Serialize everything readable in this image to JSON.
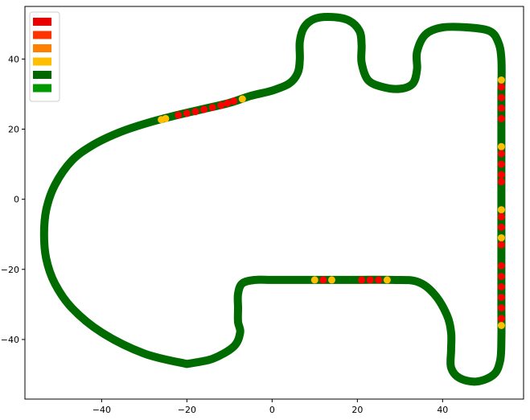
{
  "chart_data": {
    "type": "scatter",
    "title": "",
    "xlabel": "",
    "ylabel": "",
    "xlim": [
      -58,
      59
    ],
    "ylim": [
      -57,
      55
    ],
    "xticks": [
      -40,
      -20,
      0,
      20,
      40
    ],
    "yticks": [
      -40,
      -20,
      0,
      20,
      40
    ],
    "tick_labels_x": [
      "−40",
      "−20",
      "0",
      "20",
      "40"
    ],
    "tick_labels_y": [
      "−40",
      "−20",
      "0",
      "20",
      "40"
    ],
    "grid": false,
    "legend": {
      "placement": "top-left",
      "entries": [
        {
          "label": "",
          "color": "#e60000"
        },
        {
          "label": "",
          "color": "#ff3300"
        },
        {
          "label": "",
          "color": "#ff8000"
        },
        {
          "label": "",
          "color": "#ffbf00"
        },
        {
          "label": "",
          "color": "#006600"
        },
        {
          "label": "",
          "color": "#009900"
        }
      ]
    },
    "track_color": "#006b00",
    "track_path": [
      [
        -20,
        -47
      ],
      [
        -30,
        -44
      ],
      [
        -40,
        -38
      ],
      [
        -47,
        -31
      ],
      [
        -51,
        -24
      ],
      [
        -53,
        -17
      ],
      [
        -53.5,
        -10
      ],
      [
        -53,
        -3
      ],
      [
        -51,
        4
      ],
      [
        -47,
        11
      ],
      [
        -42,
        15.5
      ],
      [
        -36,
        19
      ],
      [
        -30,
        21.5
      ],
      [
        -24,
        23.5
      ],
      [
        -17,
        25.5
      ],
      [
        -10,
        27.5
      ],
      [
        -5,
        29.5
      ],
      [
        0,
        31
      ],
      [
        4,
        33
      ],
      [
        6,
        36
      ],
      [
        6.5,
        40
      ],
      [
        6.5,
        45
      ],
      [
        7.5,
        49
      ],
      [
        10,
        51.5
      ],
      [
        14,
        52
      ],
      [
        18,
        51
      ],
      [
        20.5,
        48
      ],
      [
        21,
        44
      ],
      [
        21,
        39
      ],
      [
        22.5,
        34
      ],
      [
        26,
        32
      ],
      [
        30,
        31.5
      ],
      [
        33,
        33
      ],
      [
        34,
        37
      ],
      [
        34,
        42
      ],
      [
        36,
        47
      ],
      [
        40,
        49
      ],
      [
        46,
        49
      ],
      [
        51,
        48
      ],
      [
        53,
        45
      ],
      [
        53.8,
        40
      ],
      [
        53.8,
        30
      ],
      [
        53.8,
        20
      ],
      [
        53.8,
        10
      ],
      [
        53.8,
        0
      ],
      [
        53.8,
        -10
      ],
      [
        53.8,
        -20
      ],
      [
        53.8,
        -30
      ],
      [
        53.8,
        -40
      ],
      [
        53.5,
        -46
      ],
      [
        52,
        -50
      ],
      [
        48,
        -52
      ],
      [
        44,
        -51
      ],
      [
        42,
        -48
      ],
      [
        42,
        -43
      ],
      [
        42,
        -38
      ],
      [
        41,
        -33
      ],
      [
        38,
        -27
      ],
      [
        34,
        -23.5
      ],
      [
        28,
        -23
      ],
      [
        20,
        -23
      ],
      [
        12,
        -23
      ],
      [
        6,
        -23
      ],
      [
        0,
        -23
      ],
      [
        -4,
        -23
      ],
      [
        -7,
        -24
      ],
      [
        -8,
        -27
      ],
      [
        -8,
        -31
      ],
      [
        -8,
        -35
      ],
      [
        -7.5,
        -38
      ],
      [
        -9,
        -42
      ],
      [
        -14,
        -45.5
      ],
      [
        -20,
        -47
      ]
    ],
    "highlight_series": [
      {
        "color": "#ff0000",
        "points": [
          [
            -22,
            24
          ],
          [
            -20,
            24.5
          ],
          [
            -18,
            25
          ],
          [
            -16,
            25.6
          ],
          [
            -14,
            26.2
          ],
          [
            -12,
            26.8
          ],
          [
            -10.5,
            27.4
          ],
          [
            -9,
            28
          ]
        ]
      },
      {
        "color": "#ffbf00",
        "points": [
          [
            -25,
            23
          ],
          [
            -26,
            22.7
          ],
          [
            -7,
            28.6
          ]
        ]
      },
      {
        "color": "#ffbf00",
        "points": [
          [
            53.8,
            34
          ],
          [
            53.8,
            15
          ],
          [
            53.8,
            -3
          ],
          [
            53.8,
            -11
          ],
          [
            53.8,
            -36
          ]
        ]
      },
      {
        "color": "#ff0000",
        "points": [
          [
            53.8,
            32
          ],
          [
            53.8,
            29
          ],
          [
            53.8,
            26
          ],
          [
            53.8,
            23
          ],
          [
            53.8,
            13
          ],
          [
            53.8,
            10
          ],
          [
            53.8,
            7
          ],
          [
            53.8,
            5
          ],
          [
            53.8,
            -5
          ],
          [
            53.8,
            -8
          ],
          [
            53.8,
            -13
          ],
          [
            53.8,
            -19
          ],
          [
            53.8,
            -22
          ],
          [
            53.8,
            -25
          ],
          [
            53.8,
            -28
          ],
          [
            53.8,
            -31
          ],
          [
            53.8,
            -34
          ]
        ]
      },
      {
        "color": "#ffbf00",
        "points": [
          [
            10,
            -23
          ],
          [
            14,
            -23
          ],
          [
            27,
            -23
          ]
        ]
      },
      {
        "color": "#ff0000",
        "points": [
          [
            12,
            -23
          ],
          [
            21,
            -23
          ],
          [
            23,
            -23
          ],
          [
            25,
            -23
          ]
        ]
      }
    ]
  }
}
